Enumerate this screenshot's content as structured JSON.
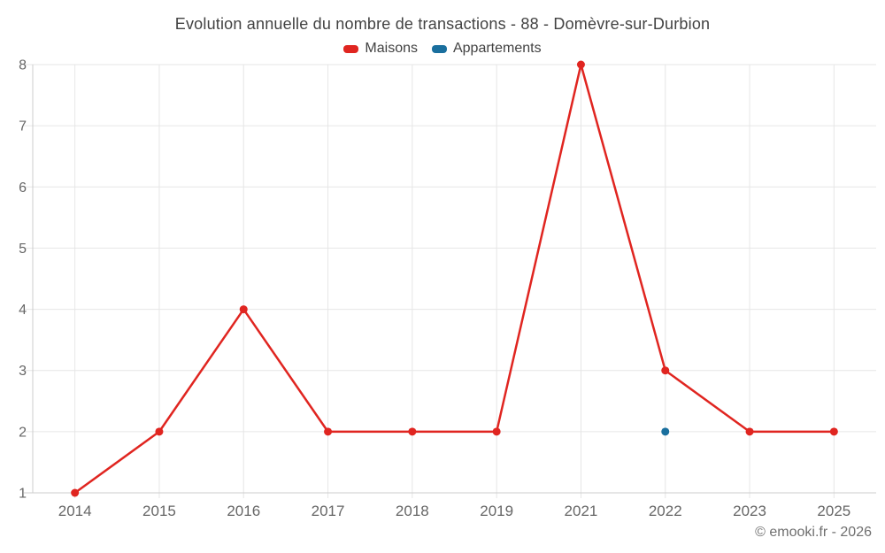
{
  "header": {
    "title": "Evolution annuelle du nombre de transactions - 88 - Domèvre-sur-Durbion"
  },
  "legend": {
    "items": [
      {
        "label": "Maisons",
        "color": "#e02520"
      },
      {
        "label": "Appartements",
        "color": "#1a6f9e"
      }
    ]
  },
  "footer": {
    "credit": "© emooki.fr - 2026"
  },
  "colors": {
    "maisons": "#e02520",
    "appartements": "#1a6f9e",
    "gridline": "#e6e6e6",
    "axis_line": "#cccccc",
    "axis_label": "#666666",
    "title_text": "#424242",
    "footer_text": "#6f6f6f",
    "background": "#ffffff"
  },
  "chart_data": {
    "type": "line",
    "title": "Evolution annuelle du nombre de transactions - 88 - Domèvre-sur-Durbion",
    "categories": [
      "2014",
      "2015",
      "2016",
      "2017",
      "2018",
      "2019",
      "2021",
      "2022",
      "2023",
      "2025"
    ],
    "series": [
      {
        "name": "Maisons",
        "color": "#e02520",
        "values": [
          1,
          2,
          4,
          2,
          2,
          2,
          8,
          3,
          2,
          2
        ]
      },
      {
        "name": "Appartements",
        "color": "#1a6f9e",
        "values": [
          null,
          null,
          null,
          null,
          null,
          null,
          null,
          2,
          null,
          null
        ]
      }
    ],
    "xlabel": "",
    "ylabel": "",
    "ylim": [
      1,
      8
    ],
    "yticks": [
      1,
      2,
      3,
      4,
      5,
      6,
      7,
      8
    ],
    "grid": true,
    "legend_position": "top",
    "markers": true
  }
}
